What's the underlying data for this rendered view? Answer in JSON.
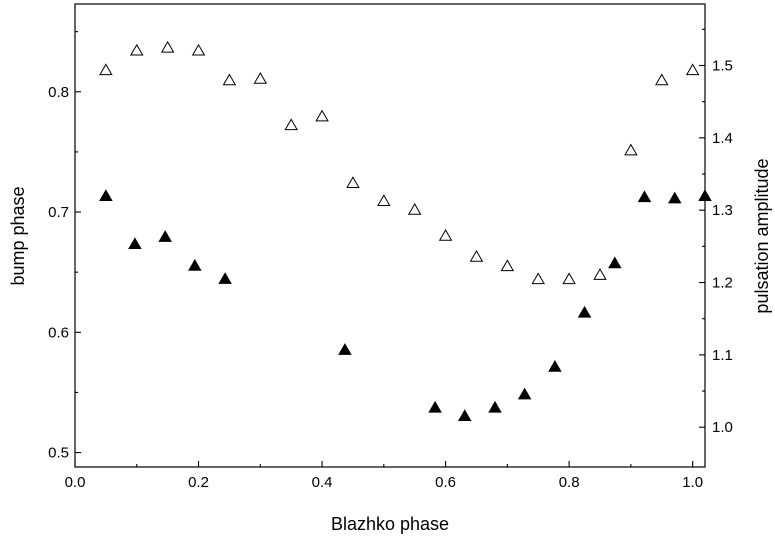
{
  "chart_data": {
    "type": "scatter",
    "xlabel": "Blazhko phase",
    "ylabel": "bump phase",
    "ylabel_right": "pulsation amplitude",
    "xlim": [
      0.0,
      1.02
    ],
    "ylim": [
      0.488,
      0.873
    ],
    "ylim_right": [
      0.945,
      1.585
    ],
    "x_ticks": [
      "0.0",
      "0.2",
      "0.4",
      "0.6",
      "0.8",
      "1.0"
    ],
    "y_ticks": [
      "0.5",
      "0.6",
      "0.7",
      "0.8"
    ],
    "y_ticks_right": [
      "1.0",
      "1.1",
      "1.2",
      "1.3",
      "1.4",
      "1.5"
    ],
    "grid": false,
    "series": [
      {
        "axis": "left",
        "marker": "filled-triangle",
        "color": "#000000",
        "x": [
          0.05,
          0.097,
          0.146,
          0.194,
          0.243,
          0.437,
          0.583,
          0.631,
          0.68,
          0.728,
          0.777,
          0.825,
          0.874,
          0.922,
          0.971,
          1.02
        ],
        "y": [
          0.713,
          0.673,
          0.679,
          0.655,
          0.644,
          0.585,
          0.537,
          0.53,
          0.537,
          0.548,
          0.571,
          0.616,
          0.657,
          0.712,
          0.711,
          0.713
        ]
      },
      {
        "axis": "right",
        "marker": "open-triangle",
        "color": "#000000",
        "x": [
          0.05,
          0.1,
          0.15,
          0.2,
          0.25,
          0.3,
          0.35,
          0.4,
          0.45,
          0.5,
          0.55,
          0.6,
          0.65,
          0.7,
          0.75,
          0.8,
          0.85,
          0.9,
          0.95,
          1.0
        ],
        "y": [
          1.493,
          1.52,
          1.524,
          1.52,
          1.479,
          1.481,
          1.417,
          1.429,
          1.337,
          1.312,
          1.3,
          1.264,
          1.235,
          1.222,
          1.204,
          1.204,
          1.21,
          1.382,
          1.479,
          1.493
        ]
      }
    ]
  }
}
